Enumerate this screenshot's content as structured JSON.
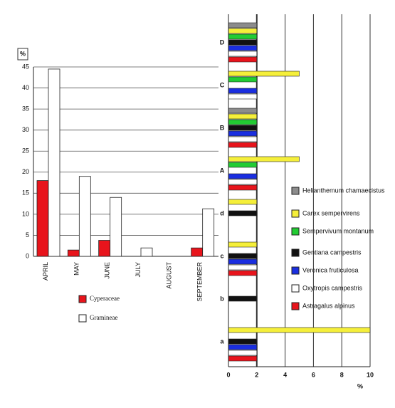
{
  "chart_data": [
    {
      "type": "bar",
      "y_label": "%",
      "categories": [
        "APRIL",
        "MAY",
        "JUNE",
        "JULY",
        "AUGUST",
        "SEPTEMBER"
      ],
      "series": [
        {
          "name": "Cyperaceae",
          "color": "#e8141c",
          "values": [
            18,
            1.5,
            3.8,
            0,
            0,
            2
          ]
        },
        {
          "name": "Gramineae",
          "color": "#ffffff",
          "values": [
            44.5,
            19,
            14,
            2,
            0,
            11.3
          ]
        }
      ],
      "ylim": [
        0,
        45
      ],
      "yticks": [
        0,
        5,
        10,
        15,
        20,
        25,
        30,
        35,
        40,
        45
      ],
      "grid": true
    },
    {
      "type": "barh",
      "x_label": "%",
      "categories": [
        "a",
        "b",
        "c",
        "d",
        "A",
        "B",
        "C",
        "D"
      ],
      "series": [
        {
          "name": "Helianthemum chamaecistus",
          "color": "#8c8c8c",
          "values": [
            null,
            null,
            null,
            null,
            null,
            2,
            null,
            2
          ]
        },
        {
          "name": "Carex sempervirens",
          "color": "#f5ef3a",
          "values": [
            10,
            null,
            2,
            2,
            5,
            2,
            5,
            2
          ]
        },
        {
          "name": "Sempervivum montanum",
          "color": "#22cc33",
          "values": [
            null,
            null,
            null,
            null,
            2,
            2,
            2,
            2
          ]
        },
        {
          "name": "Gentiana campestris",
          "color": "#111111",
          "values": [
            2,
            2,
            2,
            2,
            null,
            2,
            null,
            2
          ]
        },
        {
          "name": "Veronica fruticulosa",
          "color": "#1a2ee0",
          "values": [
            2,
            null,
            2,
            null,
            2,
            2,
            2,
            2
          ]
        },
        {
          "name": "Oxytropis campestris",
          "color": "#ffffff",
          "values": [
            2,
            null,
            2,
            null,
            2,
            2,
            2,
            2
          ]
        },
        {
          "name": "Astragalus alpinus",
          "color": "#e8141c",
          "values": [
            2,
            null,
            2,
            null,
            2,
            2,
            null,
            2
          ]
        }
      ],
      "xlim": [
        0,
        10
      ],
      "xticks": [
        0,
        2,
        4,
        6,
        8,
        10
      ],
      "grid": true
    }
  ]
}
